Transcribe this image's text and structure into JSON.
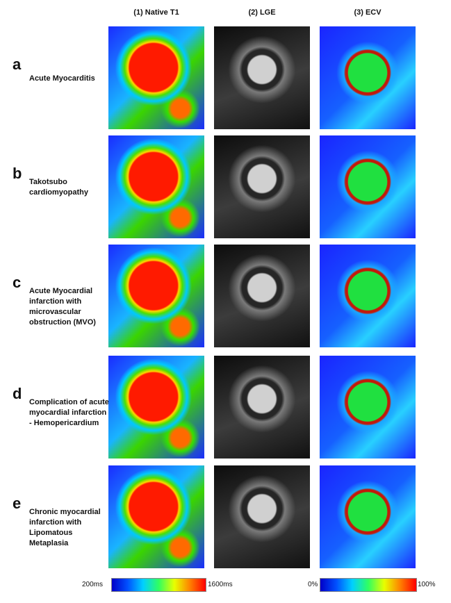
{
  "columns": [
    "(1) Native T1",
    "(2) LGE",
    "(3) ECV"
  ],
  "rows": [
    {
      "letter": "a",
      "label": "Acute Myocarditis"
    },
    {
      "letter": "b",
      "label": "Takotsubo cardiomyopathy"
    },
    {
      "letter": "c",
      "label": "Acute Myocardial infarction with microvascular obstruction (MVO)"
    },
    {
      "letter": "d",
      "label": "Complication of acute myocardial infarction - Hemopericardium"
    },
    {
      "letter": "e",
      "label": "Chronic myocardial infarction with Lipomatous Metaplasia"
    }
  ],
  "colorbars": [
    {
      "min_label": "200ms",
      "max_label": "1600ms"
    },
    {
      "min_label": "0%",
      "max_label": "100%"
    }
  ]
}
